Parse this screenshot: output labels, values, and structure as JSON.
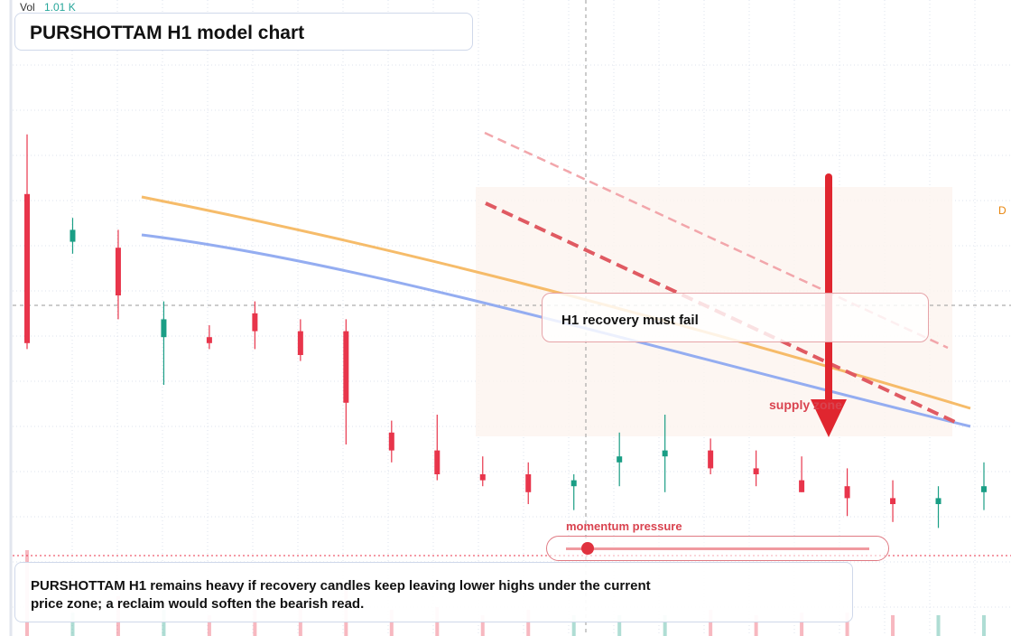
{
  "header": {
    "vol_label": "Vol",
    "vol_value": "1.01 K",
    "title": "PURSHOTTAM H1 model chart"
  },
  "annotations": {
    "callout": "H1 recovery must fail",
    "supply_zone_label": "supply zone",
    "side_marker": "D",
    "momentum_label": "momentum pressure",
    "momentum_level": 0.07,
    "note": "PURSHOTTAM H1 remains heavy if recovery candles keep leaving lower highs under the current price zone; a reclaim would soften the bearish read."
  },
  "colors": {
    "bull": "#1a9e85",
    "bear": "#e8354b",
    "ma_fast": "#f5b55a",
    "ma_slow": "#8ea9f0",
    "trend": "#e04850",
    "supply_zone": "#fdf4ef",
    "grid": "#dde3ee",
    "volume_value": "#26a69a"
  },
  "chart_data": {
    "type": "candlestick",
    "title": "PURSHOTTAM H1 model chart",
    "timeframe": "H1",
    "volume_last": "1.01 K",
    "ylim": [
      0,
      100
    ],
    "candles": [
      {
        "o": 72,
        "h": 82,
        "l": 46,
        "c": 47
      },
      {
        "o": 64,
        "h": 68,
        "l": 62,
        "c": 66
      },
      {
        "o": 63,
        "h": 66,
        "l": 51,
        "c": 55
      },
      {
        "o": 48,
        "h": 54,
        "l": 40,
        "c": 51
      },
      {
        "o": 48,
        "h": 50,
        "l": 46,
        "c": 47
      },
      {
        "o": 52,
        "h": 54,
        "l": 46,
        "c": 49
      },
      {
        "o": 49,
        "h": 51,
        "l": 44,
        "c": 45
      },
      {
        "o": 49,
        "h": 51,
        "l": 30,
        "c": 37
      },
      {
        "o": 32,
        "h": 34,
        "l": 27,
        "c": 29
      },
      {
        "o": 29,
        "h": 35,
        "l": 24,
        "c": 25
      },
      {
        "o": 25,
        "h": 28,
        "l": 23,
        "c": 24
      },
      {
        "o": 25,
        "h": 27,
        "l": 20,
        "c": 22
      },
      {
        "o": 23,
        "h": 25,
        "l": 19,
        "c": 24
      },
      {
        "o": 27,
        "h": 32,
        "l": 23,
        "c": 28
      },
      {
        "o": 28,
        "h": 35,
        "l": 22,
        "c": 29
      },
      {
        "o": 29,
        "h": 31,
        "l": 25,
        "c": 26
      },
      {
        "o": 26,
        "h": 29,
        "l": 23,
        "c": 25
      },
      {
        "o": 24,
        "h": 28,
        "l": 22,
        "c": 22
      },
      {
        "o": 23,
        "h": 26,
        "l": 18,
        "c": 21
      },
      {
        "o": 21,
        "h": 24,
        "l": 17,
        "c": 20
      },
      {
        "o": 20,
        "h": 23,
        "l": 16,
        "c": 21
      },
      {
        "o": 22,
        "h": 27,
        "l": 19,
        "c": 23
      }
    ]
  }
}
